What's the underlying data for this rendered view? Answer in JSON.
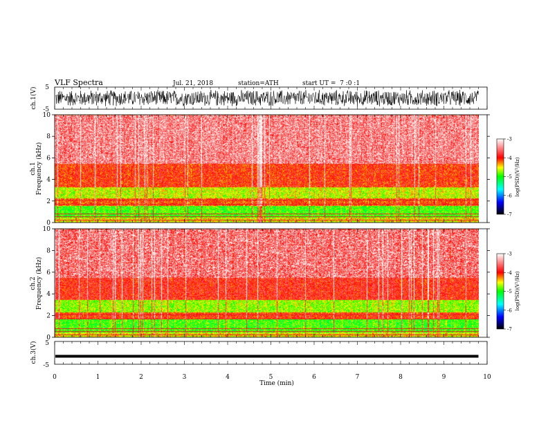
{
  "header": {
    "title": "VLF Spectra",
    "date": "Jul. 21, 2018",
    "station": "station=ATH",
    "start": "start UT =  7 :0 :1"
  },
  "colors": {
    "background": "#ffffff",
    "waveform": "#000000",
    "colormap": [
      "#000000",
      "#0000ff",
      "#00ffff",
      "#00ff00",
      "#ffff00",
      "#ff0000",
      "#ffffff"
    ]
  },
  "chart_data": [
    {
      "type": "line",
      "id": "ch1-waveform",
      "ylabel": "ch.1(V)",
      "ylim": [
        -5,
        5
      ],
      "y_ticks": [
        5,
        -5
      ],
      "xlim": [
        0,
        10
      ],
      "description": "dense broadband noise spanning about -4 to +4 V over 0 to 9.8 min"
    },
    {
      "type": "heatmap",
      "id": "ch1-spectrogram",
      "ylabel_line1": "ch.1",
      "ylabel_line2": "Frequency (kHz)",
      "ylim": [
        0,
        10
      ],
      "y_ticks": [
        0,
        2,
        4,
        6,
        8,
        10
      ],
      "xlim": [
        0,
        10
      ],
      "data_xmax": 9.8,
      "colorbar": {
        "label": "log(PSD)(V²/Hz)",
        "range": [
          -7,
          -3
        ],
        "ticks": [
          "-3",
          "-4",
          "-5",
          "-6",
          "-7"
        ]
      },
      "bands_khz": [
        {
          "from": 0,
          "to": 0.5,
          "level": -4.5
        },
        {
          "from": 0.5,
          "to": 1.6,
          "level": -4.9
        },
        {
          "from": 1.6,
          "to": 2.3,
          "level": -4.1
        },
        {
          "from": 2.3,
          "to": 3.3,
          "level": -4.6
        },
        {
          "from": 3.3,
          "to": 5.5,
          "level": -4.0
        },
        {
          "from": 5.5,
          "to": 10,
          "level": -3.6
        }
      ]
    },
    {
      "type": "heatmap",
      "id": "ch2-spectrogram",
      "ylabel_line1": "ch.2",
      "ylabel_line2": "Frequency (kHz)",
      "ylim": [
        0,
        10
      ],
      "y_ticks": [
        0,
        2,
        4,
        6,
        8,
        10
      ],
      "xlim": [
        0,
        10
      ],
      "data_xmax": 9.8,
      "colorbar": {
        "label": "log(PSD)(V²/Hz)",
        "range": [
          -7,
          -3
        ],
        "ticks": [
          "-3",
          "-4",
          "-5",
          "-6",
          "-7"
        ]
      },
      "bands_khz": [
        {
          "from": 0,
          "to": 0.5,
          "level": -4.5
        },
        {
          "from": 0.5,
          "to": 1.7,
          "level": -4.9
        },
        {
          "from": 1.7,
          "to": 2.3,
          "level": -4.0
        },
        {
          "from": 2.3,
          "to": 3.5,
          "level": -4.7
        },
        {
          "from": 3.5,
          "to": 5.5,
          "level": -3.9
        },
        {
          "from": 5.5,
          "to": 10,
          "level": -3.7
        }
      ]
    },
    {
      "type": "line",
      "id": "ch3-waveform",
      "ylabel": "ch.3(V)",
      "ylim": [
        -5,
        5
      ],
      "y_ticks": [
        5,
        -5
      ],
      "xlim": [
        0,
        10
      ],
      "level_v": -1.5,
      "description": "nearly flat trace around -1.5 V"
    }
  ],
  "xaxis": {
    "label": "Time (min)",
    "ticks": [
      "0",
      "1",
      "2",
      "3",
      "4",
      "5",
      "6",
      "7",
      "8",
      "9",
      "10"
    ]
  }
}
